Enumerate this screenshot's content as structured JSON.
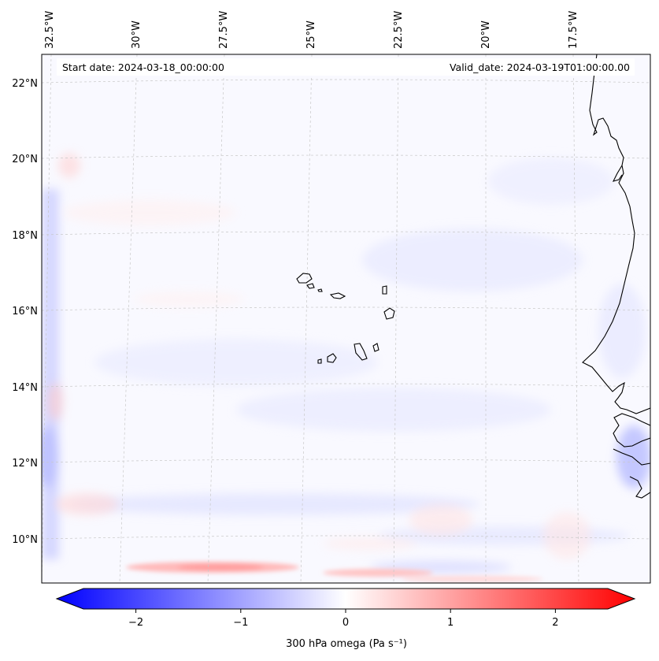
{
  "map": {
    "start_date": "Start date: 2024-03-18_00:00:00",
    "valid_date": "Valid_date: 2024-03-19T01:00:00.00",
    "lon_ticks": [
      "32.5°W",
      "30°W",
      "27.5°W",
      "25°W",
      "22.5°W",
      "20°W",
      "17.5°W"
    ],
    "lat_ticks": [
      "22°N",
      "20°N",
      "18°N",
      "16°N",
      "14°N",
      "12°N",
      "10°N"
    ],
    "field_colors": {
      "negative": "#0000ff",
      "zero": "#ffffff",
      "positive": "#ff0000"
    }
  },
  "colorbar": {
    "ticks": [
      "−2",
      "−1",
      "0",
      "1",
      "2"
    ],
    "label": "300 hPa omega (Pa s⁻¹)",
    "range": [
      -2.7,
      2.7
    ]
  }
}
